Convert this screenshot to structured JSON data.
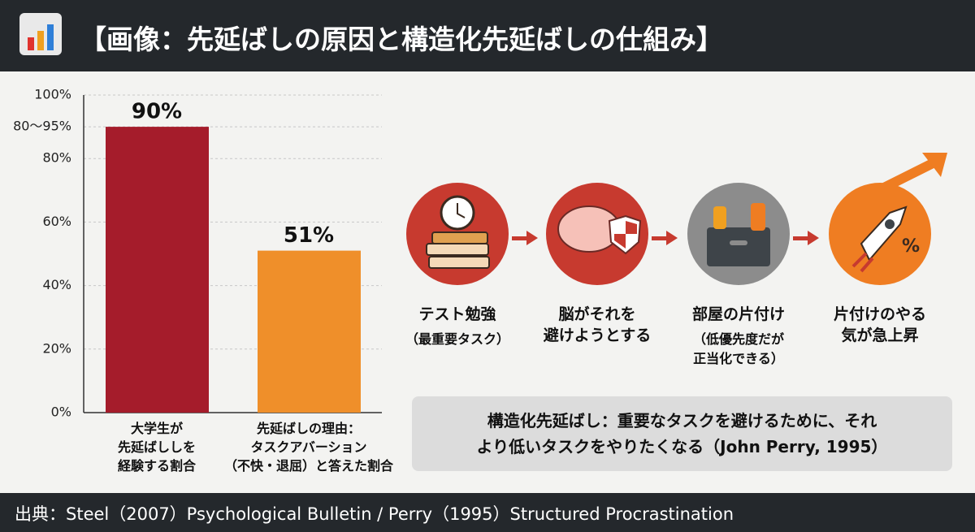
{
  "header": {
    "title": "【画像：先延ばしの原因と構造化先延ばしの仕組み】"
  },
  "chart_data": {
    "type": "bar",
    "categories": [
      "大学生が\n先延ばししを\n経験する割合",
      "先延ばしの理由：\nタスクアバーション\n（不快・退屈）と答えた割合"
    ],
    "values": [
      90,
      51
    ],
    "value_labels": [
      "90%",
      "51%"
    ],
    "colors": [
      "#a51c2b",
      "#ef8f2a"
    ],
    "ylim": [
      0,
      100
    ],
    "yticks": [
      {
        "value": 0,
        "label": "0%"
      },
      {
        "value": 20,
        "label": "20%"
      },
      {
        "value": 40,
        "label": "40%"
      },
      {
        "value": 60,
        "label": "60%"
      },
      {
        "value": 80,
        "label": "80%"
      },
      {
        "value": 90,
        "label": "80〜95%"
      },
      {
        "value": 100,
        "label": "100%"
      }
    ],
    "grid": true
  },
  "diagram": {
    "steps": [
      {
        "label": "テスト勉強",
        "note": "（最重要タスク）"
      },
      {
        "label": "脳がそれを\n避けようとする"
      },
      {
        "label": "部屋の片付け",
        "note": "（低優先度だが\n正当化できる）"
      },
      {
        "label": "片付けのやる\n気が急上昇"
      }
    ],
    "callout": "構造化先延ばし：重要なタスクを避けるために、それ\nより低いタスクをやりたくなる（John Perry, 1995）"
  },
  "footer": {
    "source": "出典：Steel（2007）Psychological Bulletin / Perry（1995）Structured Procrastination"
  }
}
